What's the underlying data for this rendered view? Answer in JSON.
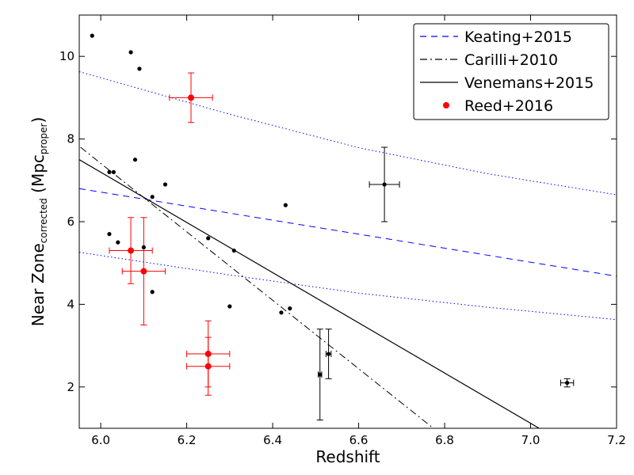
{
  "chart_data": {
    "type": "scatter",
    "title": "",
    "xlabel": "Redshift",
    "ylabel": {
      "main": "Near Zone",
      "sub": "corrected",
      "unit_open": " (Mpc",
      "unit_sub": "proper",
      "unit_close": ")"
    },
    "xlim": [
      5.95,
      7.2
    ],
    "ylim": [
      1.0,
      11.0
    ],
    "x_ticks": [
      6.0,
      6.2,
      6.4,
      6.6,
      6.8,
      7.0,
      7.2
    ],
    "x_tick_labels": [
      "6.0",
      "6.2",
      "6.4",
      "6.6",
      "6.8",
      "7.0",
      "7.2"
    ],
    "y_ticks": [
      2,
      4,
      6,
      8,
      10
    ],
    "y_tick_labels": [
      "2",
      "4",
      "6",
      "8",
      "10"
    ],
    "legend_position": "top-right",
    "legend": [
      {
        "label": "Keating+2015",
        "style": "dashed",
        "color": "#0000ff"
      },
      {
        "label": "Carilli+2010",
        "style": "dashdot",
        "color": "#000000"
      },
      {
        "label": "Venemans+2015",
        "style": "solid",
        "color": "#000000"
      },
      {
        "label": "Reed+2016",
        "style": "marker",
        "color": "#ff0000"
      }
    ],
    "lines": [
      {
        "name": "Keating+2015",
        "style": "dashed",
        "color": "#0000ff",
        "points": [
          [
            5.95,
            6.8
          ],
          [
            7.2,
            4.68
          ]
        ]
      },
      {
        "name": "Keating+2015 upper",
        "style": "dotted",
        "color": "#0000ff",
        "points": [
          [
            5.95,
            9.63
          ],
          [
            6.3,
            8.6
          ],
          [
            6.6,
            7.79
          ],
          [
            6.9,
            7.16
          ],
          [
            7.2,
            6.65
          ]
        ]
      },
      {
        "name": "Keating+2015 lower",
        "style": "dotted",
        "color": "#0000ff",
        "points": [
          [
            5.95,
            5.26
          ],
          [
            6.3,
            4.71
          ],
          [
            6.6,
            4.27
          ],
          [
            6.9,
            3.93
          ],
          [
            7.2,
            3.63
          ]
        ]
      },
      {
        "name": "Carilli+2010",
        "style": "dashdot",
        "color": "#000000",
        "points": [
          [
            5.953,
            7.8
          ],
          [
            6.774,
            1.0
          ]
        ]
      },
      {
        "name": "Venemans+2015",
        "style": "solid",
        "color": "#000000",
        "points": [
          [
            5.95,
            7.5
          ],
          [
            7.02,
            1.0
          ]
        ]
      }
    ],
    "series": [
      {
        "name": "Other quasars",
        "color": "#000000",
        "points": [
          {
            "x": 5.98,
            "y": 10.5
          },
          {
            "x": 6.07,
            "y": 10.1
          },
          {
            "x": 6.09,
            "y": 9.7
          },
          {
            "x": 6.08,
            "y": 7.5
          },
          {
            "x": 6.02,
            "y": 7.2
          },
          {
            "x": 6.03,
            "y": 7.2
          },
          {
            "x": 6.15,
            "y": 6.9
          },
          {
            "x": 6.12,
            "y": 6.6
          },
          {
            "x": 6.43,
            "y": 6.4
          },
          {
            "x": 6.02,
            "y": 5.7
          },
          {
            "x": 6.04,
            "y": 5.5
          },
          {
            "x": 6.25,
            "y": 5.6
          },
          {
            "x": 6.1,
            "y": 5.38
          },
          {
            "x": 6.31,
            "y": 5.3
          },
          {
            "x": 6.12,
            "y": 4.3
          },
          {
            "x": 6.3,
            "y": 3.95
          },
          {
            "x": 6.44,
            "y": 3.9
          },
          {
            "x": 6.42,
            "y": 3.8
          }
        ]
      },
      {
        "name": "Error-bar quasars",
        "color": "#000000",
        "points": [
          {
            "x": 6.66,
            "y": 6.9,
            "xerr": 0.035,
            "yerr": 0.9
          },
          {
            "x": 6.51,
            "y": 2.3,
            "xerr": 0.004,
            "yerr": 1.1
          },
          {
            "x": 6.53,
            "y": 2.8,
            "xerr": 0.006,
            "yerr": 0.6
          },
          {
            "x": 7.085,
            "y": 2.1,
            "xerr": 0.015,
            "yerr": 0.1
          }
        ]
      },
      {
        "name": "Reed+2016",
        "color": "#ff0000",
        "points": [
          {
            "x": 6.21,
            "y": 9.0,
            "xerr": 0.05,
            "yerr": 0.6
          },
          {
            "x": 6.07,
            "y": 5.3,
            "xerr": 0.05,
            "yerr": 0.8
          },
          {
            "x": 6.1,
            "y": 4.8,
            "xerr": 0.05,
            "yerr": 1.3
          },
          {
            "x": 6.25,
            "y": 2.8,
            "xerr": 0.05,
            "yerr": 0.8
          },
          {
            "x": 6.25,
            "y": 2.5,
            "xerr": 0.05,
            "yerr": 0.7
          }
        ]
      }
    ]
  }
}
